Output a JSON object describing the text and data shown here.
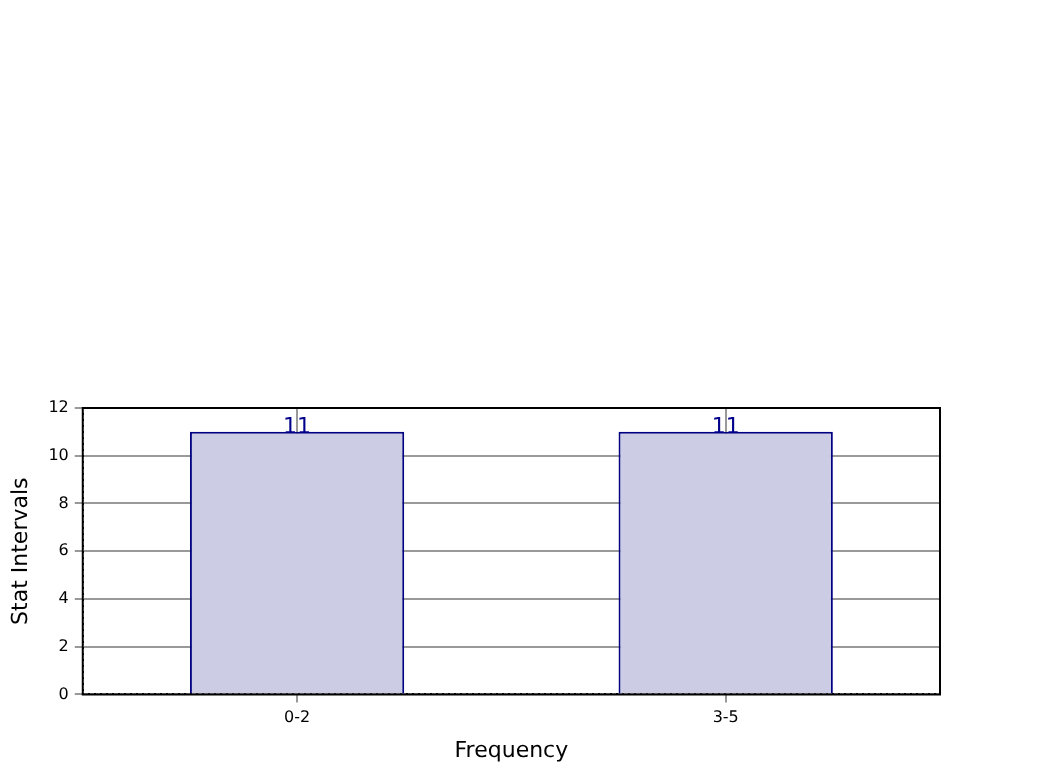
{
  "chart_data": {
    "type": "bar",
    "xlabel": "Frequency",
    "ylabel": "Stat Intervals",
    "categories": [
      "0-2",
      "3-5"
    ],
    "values": [
      11,
      11
    ],
    "color": "#cccce5",
    "ylim": [
      0,
      12
    ],
    "yticks": [
      0,
      2,
      4,
      6,
      8,
      10,
      12
    ],
    "grid": true,
    "data_labels": true,
    "legend": false
  }
}
